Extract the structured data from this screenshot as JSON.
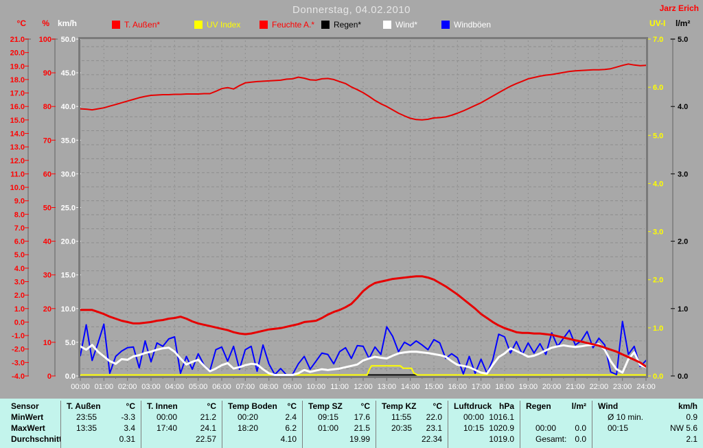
{
  "header": {
    "title": "Donnerstag, 04.02.2010",
    "user": "Jarz Erich"
  },
  "legend": [
    {
      "label": "T. Außen*",
      "swatch": "#ff0000",
      "text_color": "#ff0000"
    },
    {
      "label": "UV Index",
      "swatch": "#ffff00",
      "text_color": "#ffff00"
    },
    {
      "label": "Feuchte A.*",
      "swatch": "#ff0000",
      "text_color": "#ff0000"
    },
    {
      "label": "Regen*",
      "swatch": "#000000",
      "text_color": "#000000"
    },
    {
      "label": "Wind*",
      "swatch": "#ffffff",
      "text_color": "#ffffff"
    },
    {
      "label": "Windböen",
      "swatch": "#0000ff",
      "text_color": "#ffffff"
    }
  ],
  "axes": {
    "left": [
      {
        "unit": "°C",
        "min": -4,
        "max": 21,
        "step": 1,
        "color": "#ff0000",
        "decimals": 1
      },
      {
        "unit": "%",
        "min": 0,
        "max": 100,
        "step": 10,
        "color": "#ff0000",
        "decimals": 0
      },
      {
        "unit": "km/h",
        "min": 0,
        "max": 50,
        "step": 5,
        "color": "#ffffff",
        "decimals": 1
      }
    ],
    "right": [
      {
        "unit": "UV-I",
        "min": 0,
        "max": 7,
        "step": 1,
        "color": "#ffff00",
        "decimals": 1
      },
      {
        "unit": "l/m²",
        "min": 0,
        "max": 5,
        "step": 1,
        "color": "#000000",
        "decimals": 1
      }
    ],
    "x_labels": [
      "00:00",
      "01:00",
      "02:00",
      "03:00",
      "04:00",
      "05:00",
      "06:00",
      "07:00",
      "08:00",
      "09:00",
      "10:00",
      "11:00",
      "12:00",
      "13:00",
      "14:00",
      "15:00",
      "16:00",
      "17:00",
      "18:00",
      "19:00",
      "20:00",
      "21:00",
      "22:00",
      "23:00",
      "24:00"
    ]
  },
  "chart_data": {
    "type": "line",
    "title": "Donnerstag, 04.02.2010",
    "x_unit": "hours",
    "x_range": [
      0,
      24
    ],
    "x_interval_hours": 0.25,
    "grid": true,
    "series": [
      {
        "key": "regen",
        "name": "Regen*",
        "axis": "l/m²",
        "color": "#000000",
        "width": 2,
        "breakpoints": [
          [
            0,
            0
          ],
          [
            24,
            0
          ]
        ]
      },
      {
        "key": "uv-index",
        "name": "UV Index",
        "axis": "UV-I",
        "color": "#ffff00",
        "width": 2,
        "breakpoints": [
          [
            0,
            0
          ],
          [
            12.17,
            0
          ],
          [
            12.25,
            0.12
          ],
          [
            12.35,
            0.21
          ],
          [
            13.58,
            0.21
          ],
          [
            13.7,
            0.16
          ],
          [
            14.05,
            0.16
          ],
          [
            14.15,
            0.06
          ],
          [
            14.3,
            0
          ],
          [
            24,
            0
          ]
        ]
      },
      {
        "key": "windboeen",
        "name": "Windböen",
        "axis": "km/h",
        "color": "#0000ff",
        "width": 2,
        "values": [
          3.0,
          7.6,
          2.3,
          4.9,
          7.7,
          0.4,
          2.9,
          3.7,
          4.2,
          4.3,
          1.2,
          5.2,
          2.1,
          4.9,
          4.4,
          5.5,
          5.8,
          0.4,
          2.9,
          1.0,
          3.3,
          1.6,
          0.8,
          3.9,
          4.3,
          2.2,
          4.4,
          1.0,
          3.9,
          4.4,
          0.7,
          4.6,
          1.8,
          0.2,
          1.1,
          0.1,
          0.2,
          1.8,
          2.9,
          1.0,
          2.2,
          3.4,
          3.2,
          1.8,
          3.6,
          4.2,
          2.6,
          4.5,
          4.4,
          2.6,
          4.3,
          3.2,
          7.3,
          5.9,
          3.6,
          5.0,
          4.5,
          5.2,
          4.6,
          3.9,
          5.4,
          4.9,
          2.6,
          3.3,
          2.7,
          0.3,
          2.9,
          0.4,
          2.5,
          0.4,
          2.4,
          6.2,
          5.8,
          3.4,
          5.1,
          3.2,
          4.9,
          3.4,
          4.8,
          3.2,
          6.4,
          4.4,
          5.6,
          6.8,
          4.6,
          5.2,
          6.6,
          4.2,
          5.6,
          4.6,
          0.6,
          0.2,
          8.1,
          3.2,
          4.4,
          1.4,
          2.3
        ]
      },
      {
        "key": "wind",
        "name": "Wind*",
        "axis": "km/h",
        "color": "#ffffff",
        "width": 3,
        "values": [
          4.4,
          3.9,
          4.6,
          3.6,
          2.9,
          2.2,
          1.8,
          2.5,
          2.4,
          2.9,
          3.1,
          3.4,
          3.6,
          3.9,
          4.1,
          4.2,
          3.6,
          2.6,
          1.7,
          2.1,
          2.4,
          1.5,
          0.7,
          1.1,
          1.6,
          1.9,
          1.1,
          1.3,
          1.6,
          1.8,
          1.7,
          1.0,
          0.4,
          0.15,
          0.1,
          0.1,
          0.15,
          0.4,
          0.9,
          0.6,
          0.8,
          1.0,
          0.9,
          1.0,
          1.1,
          1.3,
          1.5,
          1.7,
          2.3,
          2.6,
          2.85,
          2.7,
          2.6,
          3.0,
          3.35,
          3.5,
          3.6,
          3.6,
          3.5,
          3.4,
          3.25,
          3.1,
          2.85,
          2.2,
          1.65,
          1.5,
          1.3,
          0.9,
          0.5,
          0.35,
          1.65,
          2.8,
          3.35,
          4.1,
          3.7,
          3.3,
          2.85,
          3.0,
          3.35,
          3.8,
          4.2,
          4.4,
          4.55,
          4.4,
          4.3,
          4.4,
          4.55,
          4.6,
          4.7,
          3.9,
          2.2,
          1.0,
          0.5,
          2.5,
          3.5,
          1.65,
          1.3
        ]
      },
      {
        "key": "t-aussen",
        "name": "T. Außen*",
        "axis": "°C",
        "color": "#e60000",
        "width": 3,
        "values": [
          0.9,
          0.9,
          0.9,
          0.75,
          0.6,
          0.4,
          0.25,
          0.1,
          0.0,
          -0.1,
          -0.1,
          -0.05,
          0.0,
          0.1,
          0.15,
          0.25,
          0.3,
          0.4,
          0.25,
          0.05,
          -0.1,
          -0.2,
          -0.3,
          -0.4,
          -0.5,
          -0.6,
          -0.75,
          -0.85,
          -0.9,
          -0.85,
          -0.75,
          -0.65,
          -0.55,
          -0.5,
          -0.45,
          -0.35,
          -0.25,
          -0.15,
          0.0,
          0.05,
          0.1,
          0.3,
          0.55,
          0.75,
          0.9,
          1.1,
          1.35,
          1.8,
          2.3,
          2.65,
          2.9,
          3.0,
          3.1,
          3.2,
          3.25,
          3.3,
          3.35,
          3.4,
          3.4,
          3.3,
          3.15,
          2.9,
          2.65,
          2.35,
          2.05,
          1.7,
          1.35,
          1.0,
          0.6,
          0.3,
          0.0,
          -0.25,
          -0.45,
          -0.6,
          -0.75,
          -0.8,
          -0.8,
          -0.85,
          -0.85,
          -0.9,
          -0.95,
          -1.05,
          -1.15,
          -1.25,
          -1.35,
          -1.45,
          -1.55,
          -1.65,
          -1.75,
          -1.9,
          -2.05,
          -2.2,
          -2.4,
          -2.6,
          -2.8,
          -3.0,
          -3.3
        ]
      },
      {
        "key": "feuchte",
        "name": "Feuchte A.*",
        "axis": "%",
        "color": "#e60000",
        "width": 2,
        "values": [
          79.3,
          79.2,
          79.0,
          79.3,
          79.6,
          80.1,
          80.6,
          81.1,
          81.6,
          82.1,
          82.6,
          83.0,
          83.3,
          83.4,
          83.5,
          83.5,
          83.6,
          83.6,
          83.7,
          83.7,
          83.7,
          83.8,
          83.8,
          84.5,
          85.3,
          85.6,
          85.2,
          86.2,
          87.0,
          87.2,
          87.4,
          87.5,
          87.6,
          87.7,
          87.8,
          88.1,
          88.2,
          88.7,
          88.4,
          87.9,
          87.8,
          88.2,
          88.3,
          88.0,
          87.4,
          86.8,
          85.8,
          85.0,
          84.1,
          83.0,
          81.8,
          80.8,
          80.0,
          79.0,
          78.0,
          77.2,
          76.5,
          76.1,
          76.0,
          76.2,
          76.6,
          76.7,
          76.9,
          77.4,
          78.0,
          78.7,
          79.5,
          80.3,
          81.1,
          82.1,
          83.1,
          84.1,
          85.1,
          86.0,
          86.8,
          87.5,
          88.2,
          88.6,
          89.0,
          89.3,
          89.5,
          89.8,
          90.1,
          90.4,
          90.6,
          90.7,
          90.8,
          90.9,
          90.9,
          91.0,
          91.2,
          91.7,
          92.2,
          92.6,
          92.3,
          92.1,
          92.2
        ]
      }
    ]
  },
  "table": {
    "row_labels": [
      "Sensor",
      "MinWert",
      "MaxWert",
      "Durchschnitt"
    ],
    "columns": [
      {
        "name": "T. Außen",
        "unit": "°C",
        "min": [
          "23:55",
          "-3.3"
        ],
        "max": [
          "13:35",
          "3.4"
        ],
        "avg": [
          "",
          "0.31"
        ]
      },
      {
        "name": "T. Innen",
        "unit": "°C",
        "min": [
          "00:00",
          "21.2"
        ],
        "max": [
          "17:40",
          "24.1"
        ],
        "avg": [
          "",
          "22.57"
        ]
      },
      {
        "name": "Temp Boden",
        "unit": "°C",
        "min": [
          "00:20",
          "2.4"
        ],
        "max": [
          "18:20",
          "6.2"
        ],
        "avg": [
          "",
          "4.10"
        ]
      },
      {
        "name": "Temp SZ",
        "unit": "°C",
        "min": [
          "09:15",
          "17.6"
        ],
        "max": [
          "01:00",
          "21.5"
        ],
        "avg": [
          "",
          "19.99"
        ]
      },
      {
        "name": "Temp KZ",
        "unit": "°C",
        "min": [
          "11:55",
          "22.0"
        ],
        "max": [
          "20:35",
          "23.1"
        ],
        "avg": [
          "",
          "22.34"
        ]
      },
      {
        "name": "Luftdruck",
        "unit": "hPa",
        "min": [
          "00:00",
          "1016.1"
        ],
        "max": [
          "10:15",
          "1020.9"
        ],
        "avg": [
          "",
          "1019.0"
        ]
      },
      {
        "name": "Regen",
        "unit": "l/m²",
        "min": [
          "",
          ""
        ],
        "max": [
          "00:00",
          "0.0"
        ],
        "avg": [
          "Gesamt:",
          "0.0"
        ]
      },
      {
        "name": "Wind",
        "unit": "km/h",
        "min": [
          "Ø 10 min.",
          "0.9"
        ],
        "max": [
          "00:15",
          "NW 5.6"
        ],
        "avg": [
          "",
          "2.1"
        ]
      }
    ]
  },
  "colors": {
    "background": "#a8a8a8",
    "plot_border": "#7a7a7a",
    "gridline": "#8d8d8d",
    "axis_line": "#858585",
    "x_tick": "#6f6f6f",
    "x_label": "#ffffff",
    "table_background": "#c3f4ec",
    "accent_red": "#ff0000",
    "accent_yellow": "#ffff00",
    "accent_blue": "#0000ff"
  }
}
